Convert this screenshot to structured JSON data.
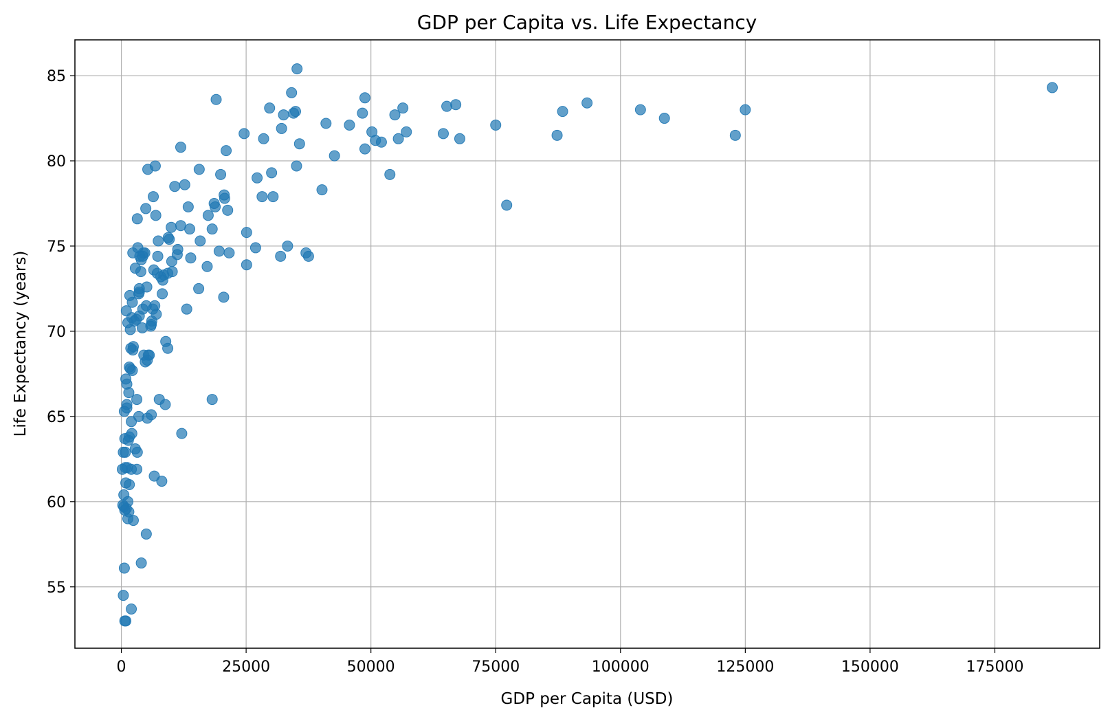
{
  "chart_data": {
    "type": "scatter",
    "title": "GDP per Capita vs. Life Expectancy",
    "xlabel": "GDP per Capita (USD)",
    "ylabel": "Life Expectancy (years)",
    "xlim": [
      -9300,
      196000
    ],
    "ylim": [
      51.4,
      87.1
    ],
    "xticks": [
      0,
      25000,
      50000,
      75000,
      100000,
      125000,
      150000,
      175000
    ],
    "xtick_labels": [
      "0",
      "25000",
      "50000",
      "75000",
      "100000",
      "125000",
      "150000",
      "175000"
    ],
    "yticks": [
      55,
      60,
      65,
      70,
      75,
      80,
      85
    ],
    "ytick_labels": [
      "55",
      "60",
      "65",
      "70",
      "75",
      "80",
      "85"
    ],
    "grid": true,
    "marker_color": "#1f77b4",
    "marker_alpha": 0.7,
    "series": [
      {
        "points": [
          [
            186500,
            84.3
          ],
          [
            125000,
            83.0
          ],
          [
            123000,
            81.5
          ],
          [
            108800,
            82.5
          ],
          [
            104000,
            83.0
          ],
          [
            93300,
            83.4
          ],
          [
            88400,
            82.9
          ],
          [
            87300,
            81.5
          ],
          [
            77200,
            77.4
          ],
          [
            75000,
            82.1
          ],
          [
            67800,
            81.3
          ],
          [
            67000,
            83.3
          ],
          [
            65200,
            83.2
          ],
          [
            64500,
            81.6
          ],
          [
            57100,
            81.7
          ],
          [
            56400,
            83.1
          ],
          [
            55500,
            81.3
          ],
          [
            54800,
            82.7
          ],
          [
            53800,
            79.2
          ],
          [
            52100,
            81.1
          ],
          [
            50900,
            81.2
          ],
          [
            50200,
            81.7
          ],
          [
            48800,
            83.7
          ],
          [
            48800,
            80.7
          ],
          [
            48300,
            82.8
          ],
          [
            45700,
            82.1
          ],
          [
            42700,
            80.3
          ],
          [
            41000,
            82.2
          ],
          [
            40200,
            78.3
          ],
          [
            37500,
            74.4
          ],
          [
            37000,
            74.6
          ],
          [
            35700,
            81.0
          ],
          [
            35200,
            85.4
          ],
          [
            35100,
            79.7
          ],
          [
            34900,
            82.9
          ],
          [
            34500,
            82.8
          ],
          [
            34100,
            84.0
          ],
          [
            33300,
            75.0
          ],
          [
            32500,
            82.7
          ],
          [
            32100,
            81.9
          ],
          [
            31900,
            74.4
          ],
          [
            30400,
            77.9
          ],
          [
            30100,
            79.3
          ],
          [
            29700,
            83.1
          ],
          [
            28500,
            81.3
          ],
          [
            28200,
            77.9
          ],
          [
            27200,
            79.0
          ],
          [
            26900,
            74.9
          ],
          [
            25100,
            75.8
          ],
          [
            25100,
            73.9
          ],
          [
            24600,
            81.6
          ],
          [
            21600,
            74.6
          ],
          [
            21300,
            77.1
          ],
          [
            21000,
            80.6
          ],
          [
            20700,
            77.8
          ],
          [
            20600,
            78.0
          ],
          [
            20500,
            72.0
          ],
          [
            19900,
            79.2
          ],
          [
            19600,
            74.7
          ],
          [
            19000,
            83.6
          ],
          [
            18800,
            77.3
          ],
          [
            18600,
            77.5
          ],
          [
            18200,
            76.0
          ],
          [
            18200,
            66.0
          ],
          [
            17400,
            76.8
          ],
          [
            17200,
            73.8
          ],
          [
            15800,
            75.3
          ],
          [
            15600,
            79.5
          ],
          [
            15500,
            72.5
          ],
          [
            13900,
            74.3
          ],
          [
            13700,
            76.0
          ],
          [
            13400,
            77.3
          ],
          [
            13100,
            71.3
          ],
          [
            12700,
            78.6
          ],
          [
            12100,
            64.0
          ],
          [
            11900,
            76.2
          ],
          [
            11900,
            80.8
          ],
          [
            11300,
            74.8
          ],
          [
            11200,
            74.5
          ],
          [
            10700,
            78.5
          ],
          [
            10200,
            73.5
          ],
          [
            10100,
            74.1
          ],
          [
            10000,
            76.1
          ],
          [
            9600,
            75.4
          ],
          [
            9400,
            75.5
          ],
          [
            9300,
            73.4
          ],
          [
            9300,
            69.0
          ],
          [
            8900,
            69.4
          ],
          [
            8800,
            65.7
          ],
          [
            8500,
            73.3
          ],
          [
            8300,
            73.0
          ],
          [
            8200,
            72.2
          ],
          [
            8100,
            61.2
          ],
          [
            7900,
            73.2
          ],
          [
            7600,
            66.0
          ],
          [
            7400,
            75.3
          ],
          [
            7300,
            74.4
          ],
          [
            7200,
            73.4
          ],
          [
            7000,
            71.0
          ],
          [
            6900,
            76.8
          ],
          [
            6800,
            79.7
          ],
          [
            6700,
            71.5
          ],
          [
            6600,
            61.5
          ],
          [
            6500,
            73.6
          ],
          [
            6400,
            77.9
          ],
          [
            6300,
            71.3
          ],
          [
            6100,
            70.6
          ],
          [
            6000,
            65.1
          ],
          [
            6000,
            70.4
          ],
          [
            5900,
            70.3
          ],
          [
            5600,
            68.6
          ],
          [
            5400,
            68.6
          ],
          [
            5300,
            79.5
          ],
          [
            5200,
            68.3
          ],
          [
            5200,
            64.9
          ],
          [
            5100,
            72.6
          ],
          [
            5000,
            71.5
          ],
          [
            5000,
            58.1
          ],
          [
            4900,
            77.2
          ],
          [
            4800,
            68.2
          ],
          [
            4700,
            74.6
          ],
          [
            4500,
            68.6
          ],
          [
            4400,
            74.6
          ],
          [
            4300,
            74.4
          ],
          [
            4300,
            71.3
          ],
          [
            4200,
            70.2
          ],
          [
            4000,
            74.2
          ],
          [
            4000,
            56.4
          ],
          [
            3900,
            73.5
          ],
          [
            3700,
            74.4
          ],
          [
            3600,
            70.9
          ],
          [
            3600,
            72.3
          ],
          [
            3600,
            72.5
          ],
          [
            3500,
            72.2
          ],
          [
            3500,
            65.0
          ],
          [
            3300,
            74.9
          ],
          [
            3200,
            62.9
          ],
          [
            3200,
            76.6
          ],
          [
            3100,
            61.9
          ],
          [
            3100,
            66.0
          ],
          [
            3000,
            70.7
          ],
          [
            2800,
            63.1
          ],
          [
            2800,
            73.7
          ],
          [
            2600,
            70.6
          ],
          [
            2400,
            69.1
          ],
          [
            2400,
            58.9
          ],
          [
            2300,
            68.9
          ],
          [
            2300,
            74.6
          ],
          [
            2200,
            67.7
          ],
          [
            2200,
            71.7
          ],
          [
            2100,
            64.0
          ],
          [
            2100,
            70.8
          ],
          [
            2000,
            64.7
          ],
          [
            2000,
            61.9
          ],
          [
            2000,
            53.7
          ],
          [
            1900,
            69.0
          ],
          [
            1800,
            67.8
          ],
          [
            1800,
            70.1
          ],
          [
            1700,
            72.1
          ],
          [
            1600,
            61.0
          ],
          [
            1600,
            63.8
          ],
          [
            1600,
            67.9
          ],
          [
            1500,
            59.4
          ],
          [
            1500,
            66.4
          ],
          [
            1400,
            63.6
          ],
          [
            1300,
            59.0
          ],
          [
            1300,
            60.0
          ],
          [
            1300,
            70.5
          ],
          [
            1200,
            62.0
          ],
          [
            1100,
            65.7
          ],
          [
            1100,
            66.9
          ],
          [
            1100,
            65.5
          ],
          [
            1000,
            71.2
          ],
          [
            1000,
            59.6
          ],
          [
            900,
            53.0
          ],
          [
            900,
            61.1
          ],
          [
            900,
            67.2
          ],
          [
            800,
            62.9
          ],
          [
            800,
            62.0
          ],
          [
            700,
            63.7
          ],
          [
            700,
            59.5
          ],
          [
            700,
            53.0
          ],
          [
            600,
            56.1
          ],
          [
            600,
            65.3
          ],
          [
            500,
            60.4
          ],
          [
            500,
            59.7
          ],
          [
            400,
            62.9
          ],
          [
            400,
            54.5
          ],
          [
            300,
            59.8
          ],
          [
            200,
            61.9
          ]
        ]
      }
    ]
  }
}
